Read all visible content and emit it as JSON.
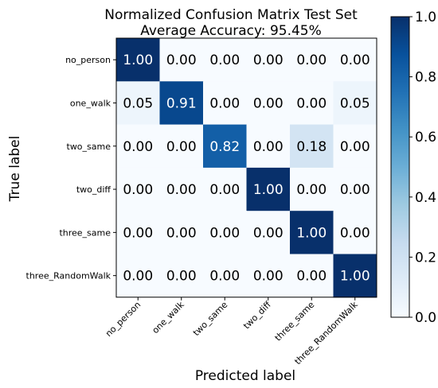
{
  "chart_data": {
    "type": "heatmap",
    "title": "Normalized Confusion Matrix Test Set",
    "subtitle": "Average Accuracy: 95.45%",
    "xlabel": "Predicted label",
    "ylabel": "True label",
    "row_labels": [
      "no_person",
      "one_walk",
      "two_same",
      "two_diff",
      "three_same",
      "three_RandomWalk"
    ],
    "col_labels": [
      "no_person",
      "one_walk",
      "two_same",
      "two_diff",
      "three_same",
      "three_RandomWalk"
    ],
    "values": [
      [
        1.0,
        0.0,
        0.0,
        0.0,
        0.0,
        0.0
      ],
      [
        0.05,
        0.91,
        0.0,
        0.0,
        0.0,
        0.05
      ],
      [
        0.0,
        0.0,
        0.82,
        0.0,
        0.18,
        0.0
      ],
      [
        0.0,
        0.0,
        0.0,
        1.0,
        0.0,
        0.0
      ],
      [
        0.0,
        0.0,
        0.0,
        0.0,
        1.0,
        0.0
      ],
      [
        0.0,
        0.0,
        0.0,
        0.0,
        0.0,
        1.0
      ]
    ],
    "value_labels": [
      [
        "1.00",
        "0.00",
        "0.00",
        "0.00",
        "0.00",
        "0.00"
      ],
      [
        "0.05",
        "0.91",
        "0.00",
        "0.00",
        "0.00",
        "0.05"
      ],
      [
        "0.00",
        "0.00",
        "0.82",
        "0.00",
        "0.18",
        "0.00"
      ],
      [
        "0.00",
        "0.00",
        "0.00",
        "1.00",
        "0.00",
        "0.00"
      ],
      [
        "0.00",
        "0.00",
        "0.00",
        "0.00",
        "1.00",
        "0.00"
      ],
      [
        "0.00",
        "0.00",
        "0.00",
        "0.00",
        "0.00",
        "1.00"
      ]
    ],
    "colorbar": {
      "range": [
        0,
        1
      ],
      "ticks": [
        0.0,
        0.2,
        0.4,
        0.6,
        0.8,
        1.0
      ],
      "tick_labels": [
        "0.0",
        "0.2",
        "0.4",
        "0.6",
        "0.8",
        "1.0"
      ],
      "colormap": [
        "#f7fbff",
        "#deebf7",
        "#c6dbef",
        "#9ecae1",
        "#6baed6",
        "#4292c6",
        "#2171b5",
        "#08519c",
        "#08306b"
      ]
    },
    "grid": false
  }
}
